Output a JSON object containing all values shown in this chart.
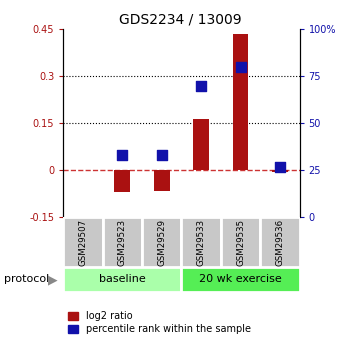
{
  "title": "GDS2234 / 13009",
  "samples": [
    "GSM29507",
    "GSM29523",
    "GSM29529",
    "GSM29533",
    "GSM29535",
    "GSM29536"
  ],
  "log2_ratio": [
    0.0,
    -0.07,
    -0.065,
    0.165,
    0.435,
    -0.005
  ],
  "percentile_rank_right": [
    null,
    33,
    33,
    70,
    80,
    27
  ],
  "ylim_left": [
    -0.15,
    0.45
  ],
  "ylim_right": [
    0,
    100
  ],
  "yticks_left": [
    -0.15,
    0.0,
    0.15,
    0.3,
    0.45
  ],
  "ytick_labels_left": [
    "-0.15",
    "0",
    "0.15",
    "0.3",
    "0.45"
  ],
  "yticks_right": [
    0,
    25,
    50,
    75,
    100
  ],
  "ytick_labels_right": [
    "0",
    "25",
    "50",
    "75",
    "100%"
  ],
  "hlines": [
    0.15,
    0.3
  ],
  "bar_color": "#aa1111",
  "dot_color": "#1111aa",
  "bar_width": 0.4,
  "dot_size": 45,
  "protocol_label": "protocol",
  "baseline_label": "baseline",
  "exercise_label": "20 wk exercise",
  "legend_bar_label": "log2 ratio",
  "legend_dot_label": "percentile rank within the sample",
  "baseline_color": "#aaffaa",
  "exercise_color": "#55ee55",
  "sample_box_color": "#c8c8c8",
  "zero_line_color": "#cc3333",
  "grid_color": "#000000"
}
